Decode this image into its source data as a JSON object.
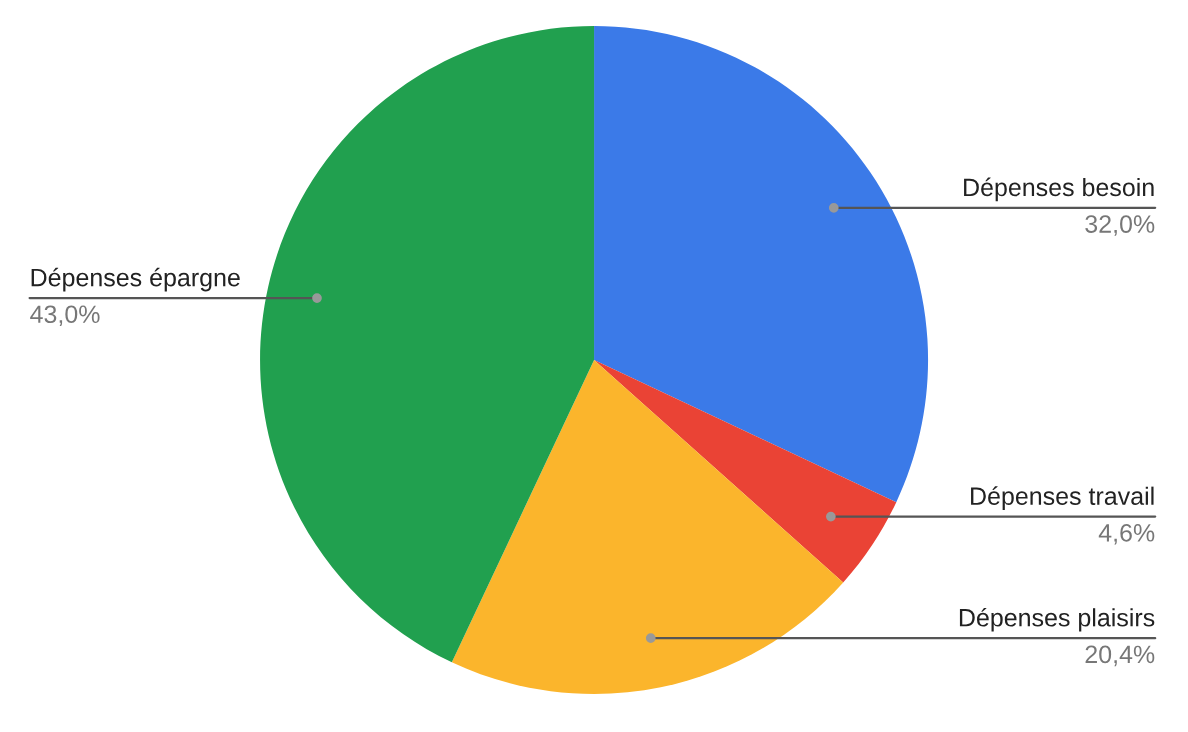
{
  "chart_data": {
    "type": "pie",
    "categories": [
      "Dépenses besoin",
      "Dépenses travail",
      "Dépenses plaisirs",
      "Dépenses épargne"
    ],
    "values": [
      32.0,
      4.6,
      20.4,
      43.0
    ],
    "colors": [
      "#3b7ae8",
      "#ea4335",
      "#fbb52c",
      "#21a04f"
    ],
    "value_labels": [
      "32,0%",
      "4,6%",
      "20,4%",
      "43,0%"
    ]
  }
}
